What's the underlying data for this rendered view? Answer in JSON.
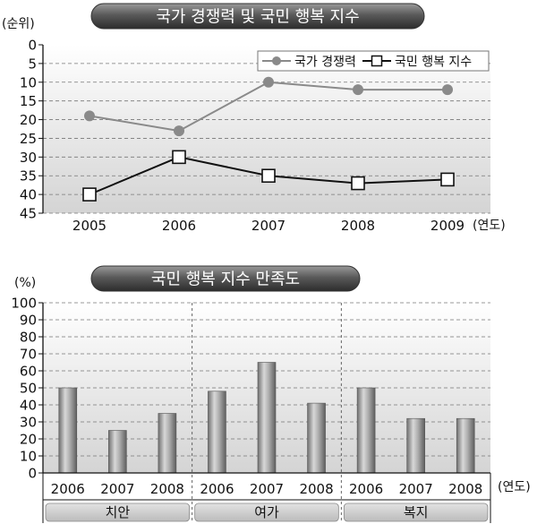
{
  "chart_data": [
    {
      "type": "line",
      "title": "국가 경쟁력 및 국민 행복 지수",
      "ylabel": "(순위)",
      "xlabel": "(연도)",
      "x": [
        "2005",
        "2006",
        "2007",
        "2008",
        "2009"
      ],
      "y_ticks": [
        "0",
        "5",
        "10",
        "15",
        "20",
        "25",
        "30",
        "35",
        "40",
        "45"
      ],
      "ylim": [
        0,
        45
      ],
      "y_inverted": true,
      "grid": true,
      "legend_position": "top-right",
      "series": [
        {
          "name": "국가 경쟁력",
          "marker": "circle",
          "color": "#8a8a8a",
          "values": [
            19,
            23,
            10,
            12,
            12
          ]
        },
        {
          "name": "국민 행복 지수",
          "marker": "square",
          "color": "#111111",
          "values": [
            40,
            30,
            35,
            37,
            36
          ]
        }
      ]
    },
    {
      "type": "bar",
      "title": "국민 행복 지수 만족도",
      "ylabel": "(%)",
      "xlabel": "(연도)",
      "y_ticks": [
        "0",
        "10",
        "20",
        "30",
        "40",
        "50",
        "60",
        "70",
        "80",
        "90",
        "100"
      ],
      "ylim": [
        0,
        100
      ],
      "grid": true,
      "groups": [
        {
          "name": "치안",
          "categories": [
            "2006",
            "2007",
            "2008"
          ],
          "values": [
            50,
            25,
            35
          ]
        },
        {
          "name": "여가",
          "categories": [
            "2006",
            "2007",
            "2008"
          ],
          "values": [
            48,
            65,
            41
          ]
        },
        {
          "name": "복지",
          "categories": [
            "2006",
            "2007",
            "2008"
          ],
          "values": [
            50,
            32,
            32
          ]
        }
      ]
    }
  ]
}
